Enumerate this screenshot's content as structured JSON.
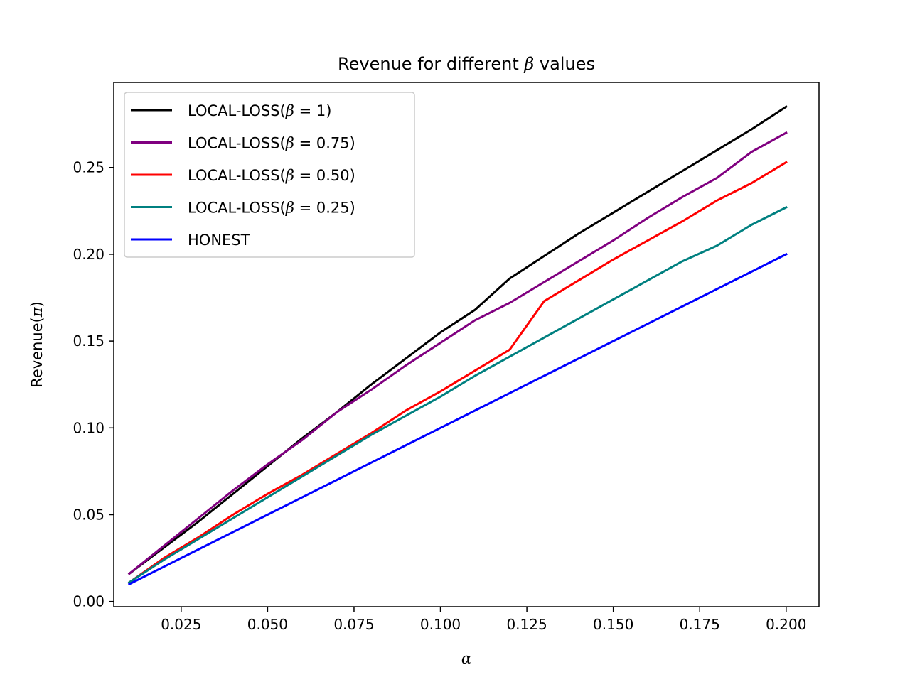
{
  "chart_data": {
    "type": "line",
    "title_prefix": "Revenue for different ",
    "title_symbol": "β",
    "title_suffix": " values",
    "xlabel": "α",
    "ylabel_prefix": "Revenue(",
    "ylabel_symbol": "π",
    "ylabel_suffix": ")",
    "xlim": [
      0.0055,
      0.2095
    ],
    "ylim": [
      -0.003,
      0.299
    ],
    "xticks": [
      0.025,
      0.05,
      0.075,
      0.1,
      0.125,
      0.15,
      0.175,
      0.2
    ],
    "xtick_labels": [
      "0.025",
      "0.050",
      "0.075",
      "0.100",
      "0.125",
      "0.150",
      "0.175",
      "0.200"
    ],
    "yticks": [
      0.0,
      0.05,
      0.1,
      0.15,
      0.2,
      0.25
    ],
    "ytick_labels": [
      "0.00",
      "0.05",
      "0.10",
      "0.15",
      "0.20",
      "0.25"
    ],
    "grid": false,
    "legend_position": "top-left",
    "x": [
      0.01,
      0.02,
      0.03,
      0.04,
      0.05,
      0.06,
      0.07,
      0.08,
      0.09,
      0.1,
      0.11,
      0.12,
      0.13,
      0.14,
      0.15,
      0.16,
      0.17,
      0.18,
      0.19,
      0.2
    ],
    "series": [
      {
        "name": "LOCAL-LOSS(β = 1)",
        "legend_prefix": "LOCAL-LOSS(",
        "legend_value": "1",
        "color": "#000000",
        "values": [
          0.016,
          0.031,
          0.046,
          0.062,
          0.078,
          0.094,
          0.109,
          0.125,
          0.14,
          0.155,
          0.168,
          0.186,
          0.199,
          0.212,
          0.224,
          0.236,
          0.248,
          0.26,
          0.272,
          0.285
        ]
      },
      {
        "name": "LOCAL-LOSS(β = 0.75)",
        "legend_prefix": "LOCAL-LOSS(",
        "legend_value": "0.75",
        "color": "#800080",
        "values": [
          0.016,
          0.032,
          0.048,
          0.064,
          0.079,
          0.093,
          0.109,
          0.122,
          0.136,
          0.149,
          0.162,
          0.172,
          0.184,
          0.196,
          0.208,
          0.221,
          0.233,
          0.244,
          0.259,
          0.27
        ]
      },
      {
        "name": "LOCAL-LOSS(β = 0.50)",
        "legend_prefix": "LOCAL-LOSS(",
        "legend_value": "0.50",
        "color": "#ff0000",
        "values": [
          0.011,
          0.025,
          0.037,
          0.05,
          0.062,
          0.073,
          0.085,
          0.097,
          0.11,
          0.121,
          0.133,
          0.145,
          0.173,
          0.185,
          0.197,
          0.208,
          0.219,
          0.231,
          0.241,
          0.253
        ]
      },
      {
        "name": "LOCAL-LOSS(β = 0.25)",
        "legend_prefix": "LOCAL-LOSS(",
        "legend_value": "0.25",
        "color": "#008080",
        "values": [
          0.011,
          0.024,
          0.036,
          0.048,
          0.06,
          0.072,
          0.084,
          0.096,
          0.107,
          0.118,
          0.13,
          0.141,
          0.152,
          0.163,
          0.174,
          0.185,
          0.196,
          0.205,
          0.217,
          0.227
        ]
      },
      {
        "name": "HONEST",
        "legend_prefix": "HONEST",
        "legend_value": "",
        "color": "#0000ff",
        "values": [
          0.01,
          0.02,
          0.03,
          0.04,
          0.05,
          0.06,
          0.07,
          0.08,
          0.09,
          0.1,
          0.11,
          0.12,
          0.13,
          0.14,
          0.15,
          0.16,
          0.17,
          0.18,
          0.19,
          0.2
        ]
      }
    ]
  }
}
